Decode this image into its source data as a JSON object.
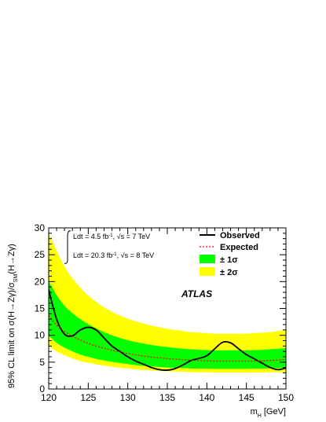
{
  "chart_data": {
    "type": "line",
    "xlabel": "m_H [GeV]",
    "ylabel": "95% CL limit on σ(H→Zγ)/σ_SM(H→Zγ)",
    "xlim": [
      120,
      150
    ],
    "ylim": [
      0,
      30
    ],
    "x_ticks": [
      120,
      125,
      130,
      135,
      140,
      145,
      150
    ],
    "y_ticks": [
      0,
      5,
      10,
      15,
      20,
      25,
      30
    ],
    "grid": false,
    "legend_position": "top-right",
    "legend": [
      "Observed",
      "Expected",
      "± 1σ",
      "± 2σ"
    ],
    "annotations": {
      "lumi_7": "∫Ldt = 4.5 fb⁻¹, √s = 7 TeV",
      "lumi_8": "∫Ldt = 20.3 fb⁻¹, √s = 8 TeV",
      "experiment": "ATLAS"
    },
    "x": [
      120,
      121,
      122,
      123,
      124,
      125,
      126,
      127,
      128,
      129,
      130,
      131,
      132,
      133,
      134,
      135,
      136,
      137,
      138,
      139,
      140,
      141,
      142,
      143,
      144,
      145,
      146,
      147,
      148,
      149,
      150
    ],
    "series": [
      {
        "name": "Observed",
        "color": "#000000",
        "style": "solid",
        "values": [
          18.5,
          13.0,
          10.2,
          9.9,
          11.0,
          11.5,
          11.0,
          9.5,
          8.0,
          7.0,
          6.0,
          5.2,
          4.6,
          4.0,
          3.6,
          3.5,
          3.8,
          4.5,
          5.3,
          5.7,
          6.2,
          7.5,
          8.7,
          8.6,
          7.5,
          6.4,
          5.6,
          4.8,
          4.0,
          3.6,
          3.9
        ]
      },
      {
        "name": "Expected",
        "color": "#ff0000",
        "style": "dashed",
        "values": [
          13.7,
          11.9,
          10.7,
          9.8,
          9.1,
          8.5,
          8.0,
          7.6,
          7.2,
          6.9,
          6.6,
          6.35,
          6.15,
          5.95,
          5.8,
          5.65,
          5.55,
          5.45,
          5.35,
          5.3,
          5.25,
          5.2,
          5.2,
          5.2,
          5.2,
          5.2,
          5.2,
          5.25,
          5.3,
          5.4,
          5.5
        ]
      }
    ],
    "bands": [
      {
        "name": "± 2σ",
        "color": "#ffff00",
        "lower": [
          8.0,
          7.0,
          6.3,
          5.7,
          5.2,
          4.9,
          4.6,
          4.35,
          4.15,
          3.95,
          3.8,
          3.65,
          3.55,
          3.45,
          3.35,
          3.3,
          3.25,
          3.2,
          3.15,
          3.1,
          3.1,
          3.05,
          3.05,
          3.05,
          3.05,
          3.05,
          3.05,
          3.05,
          3.1,
          3.1,
          3.15
        ],
        "upper": [
          29.0,
          25.8,
          22.8,
          20.6,
          18.9,
          17.4,
          16.2,
          15.2,
          14.4,
          13.7,
          13.1,
          12.6,
          12.2,
          11.8,
          11.5,
          11.2,
          11.0,
          10.8,
          10.6,
          10.5,
          10.4,
          10.3,
          10.3,
          10.3,
          10.3,
          10.3,
          10.4,
          10.5,
          10.6,
          10.8,
          11.0
        ]
      },
      {
        "name": "± 1σ",
        "color": "#00ff00",
        "lower": [
          9.9,
          8.6,
          7.7,
          7.0,
          6.4,
          6.0,
          5.6,
          5.3,
          5.05,
          4.85,
          4.65,
          4.45,
          4.3,
          4.2,
          4.1,
          4.0,
          3.95,
          3.9,
          3.85,
          3.8,
          3.8,
          3.75,
          3.75,
          3.75,
          3.75,
          3.75,
          3.8,
          3.8,
          3.85,
          3.9,
          3.95
        ],
        "upper": [
          20.1,
          17.5,
          15.5,
          14.1,
          13.0,
          12.1,
          11.3,
          10.6,
          10.0,
          9.5,
          9.1,
          8.75,
          8.45,
          8.2,
          8.0,
          7.8,
          7.65,
          7.5,
          7.4,
          7.3,
          7.25,
          7.2,
          7.2,
          7.2,
          7.2,
          7.2,
          7.25,
          7.3,
          7.4,
          7.5,
          7.6
        ]
      }
    ]
  }
}
